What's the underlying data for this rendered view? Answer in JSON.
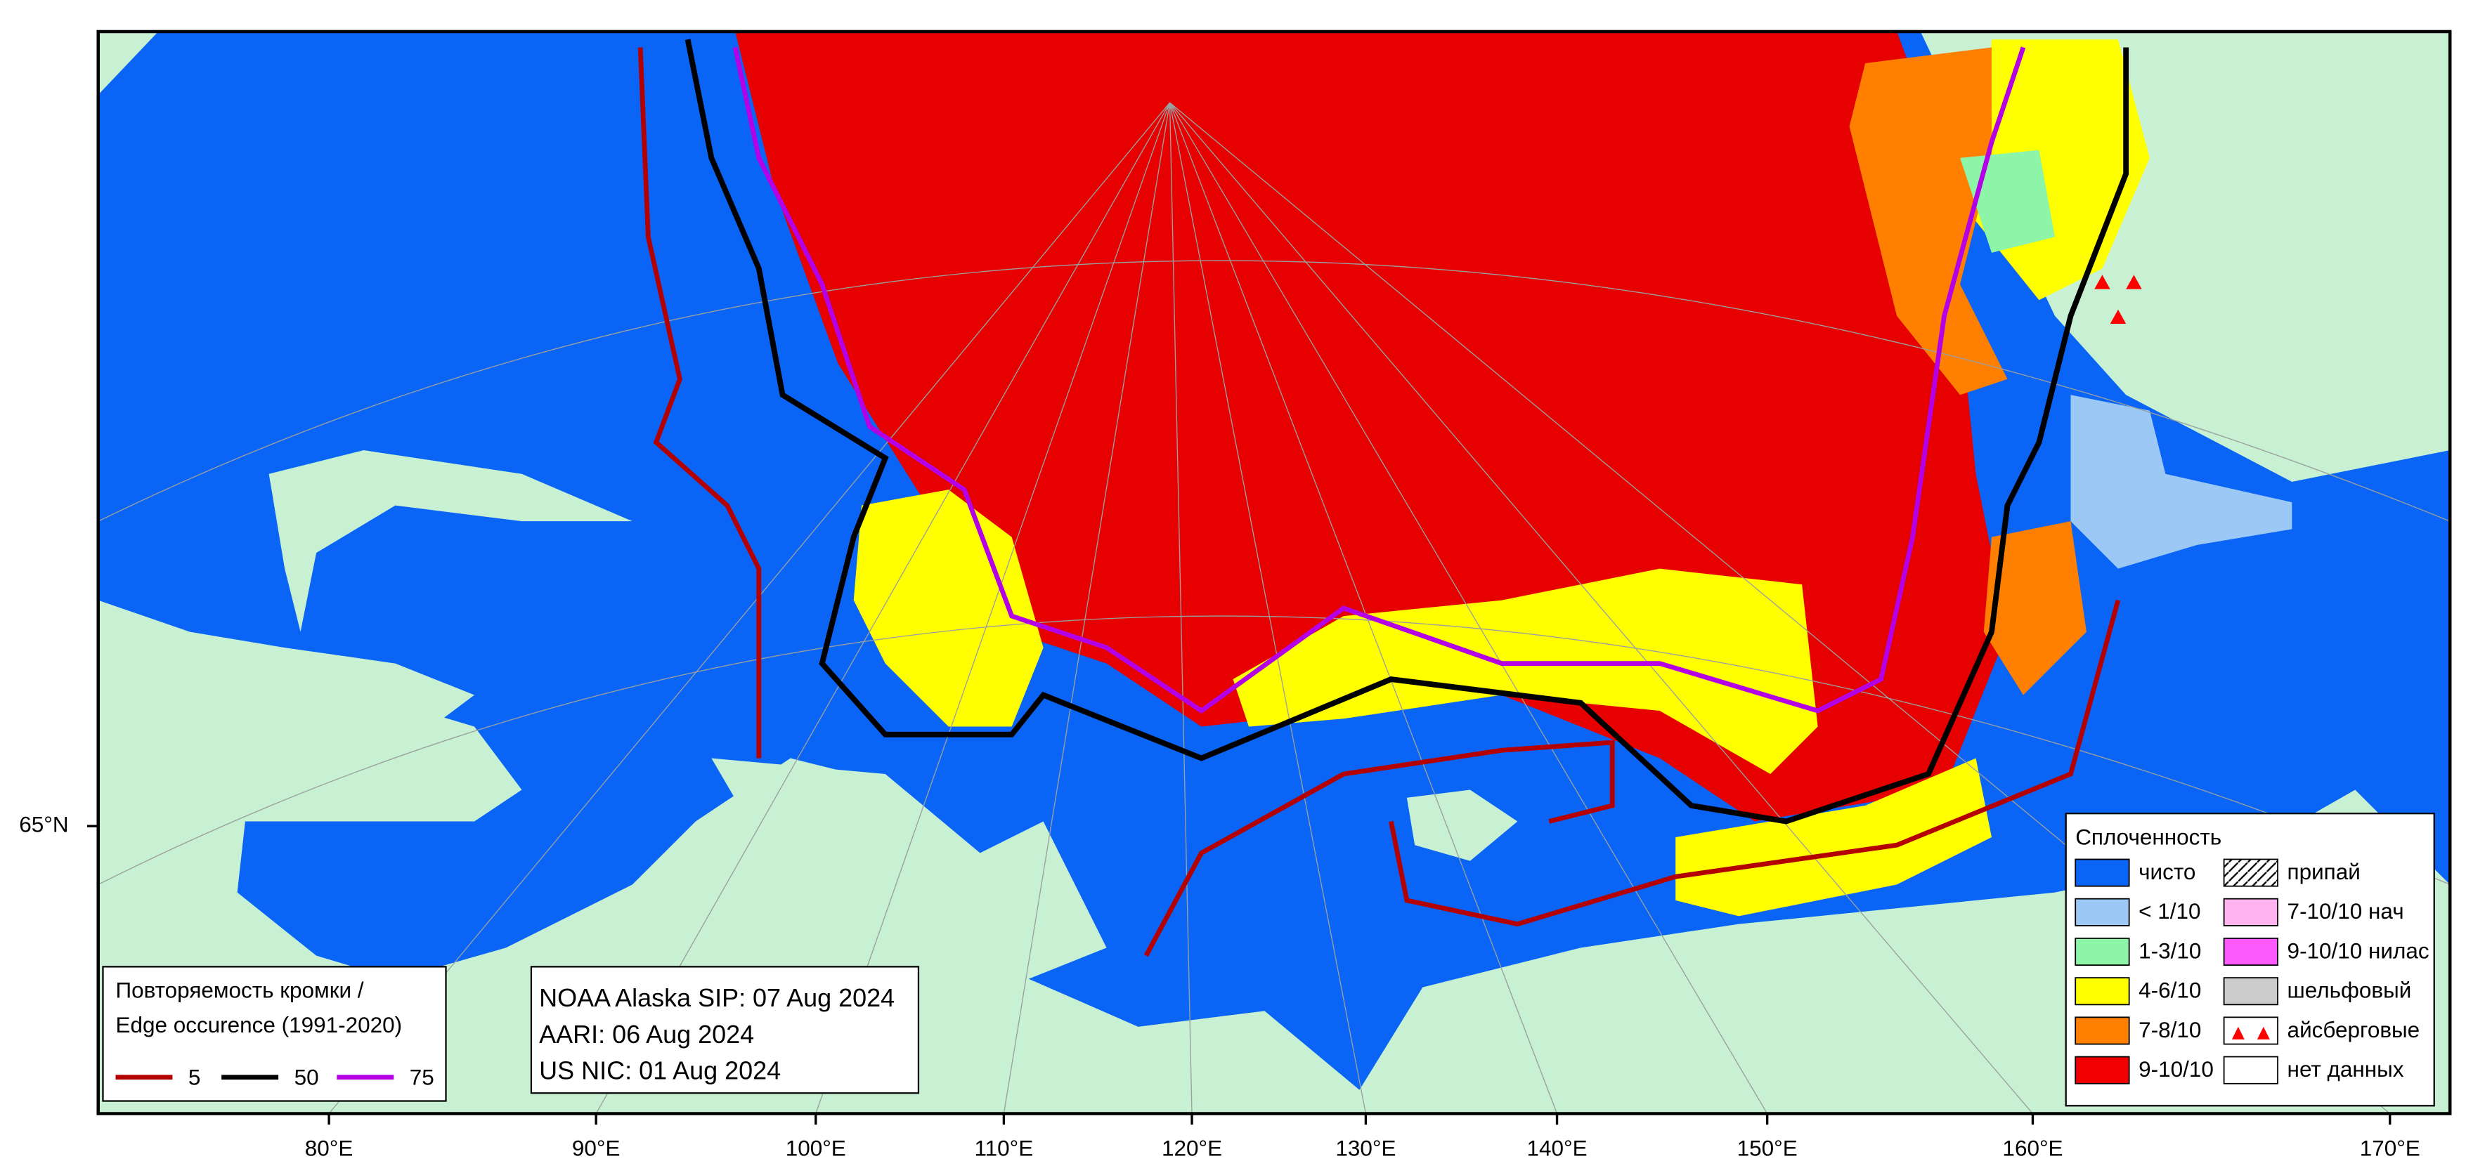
{
  "map": {
    "lat_labels": [
      "65°N"
    ],
    "lon_labels": [
      "80°E",
      "90°E",
      "100°E",
      "110°E",
      "120°E",
      "130°E",
      "140°E",
      "150°E",
      "160°E",
      "170°E"
    ],
    "concentration_legend": {
      "title": "Сплоченность",
      "items": [
        {
          "label": "чисто",
          "color": "#0a64f5"
        },
        {
          "label": "< 1/10",
          "color": "#9cc8f5"
        },
        {
          "label": "1-3/10",
          "color": "#8cf5a8"
        },
        {
          "label": "4-6/10",
          "color": "#ffff00"
        },
        {
          "label": "7-8/10",
          "color": "#ff8000"
        },
        {
          "label": "9-10/10",
          "color": "#f00000"
        },
        {
          "label": "припай",
          "color": "hatch"
        },
        {
          "label": "7-10/10 нач",
          "color": "#ffb4f0"
        },
        {
          "label": "9-10/10 нилас",
          "color": "#ff5aff"
        },
        {
          "label": "шельфовый",
          "color": "#cccccc"
        },
        {
          "label": "айсберговые",
          "color": "icebergs"
        },
        {
          "label": "нет данных",
          "color": "#ffffff"
        }
      ]
    },
    "edge_legend": {
      "title": [
        "Повторяемость кромки /",
        "Edge occurence (1991-2020)"
      ],
      "items": [
        {
          "label": "5",
          "color": "#b40000"
        },
        {
          "label": "50",
          "color": "#000000"
        },
        {
          "label": "75",
          "color": "#b400e6"
        }
      ]
    },
    "sources": [
      "NOAA Alaska SIP: 07 Aug 2024",
      "AARI: 06 Aug 2024",
      "US NIC: 01 Aug 2024"
    ]
  }
}
